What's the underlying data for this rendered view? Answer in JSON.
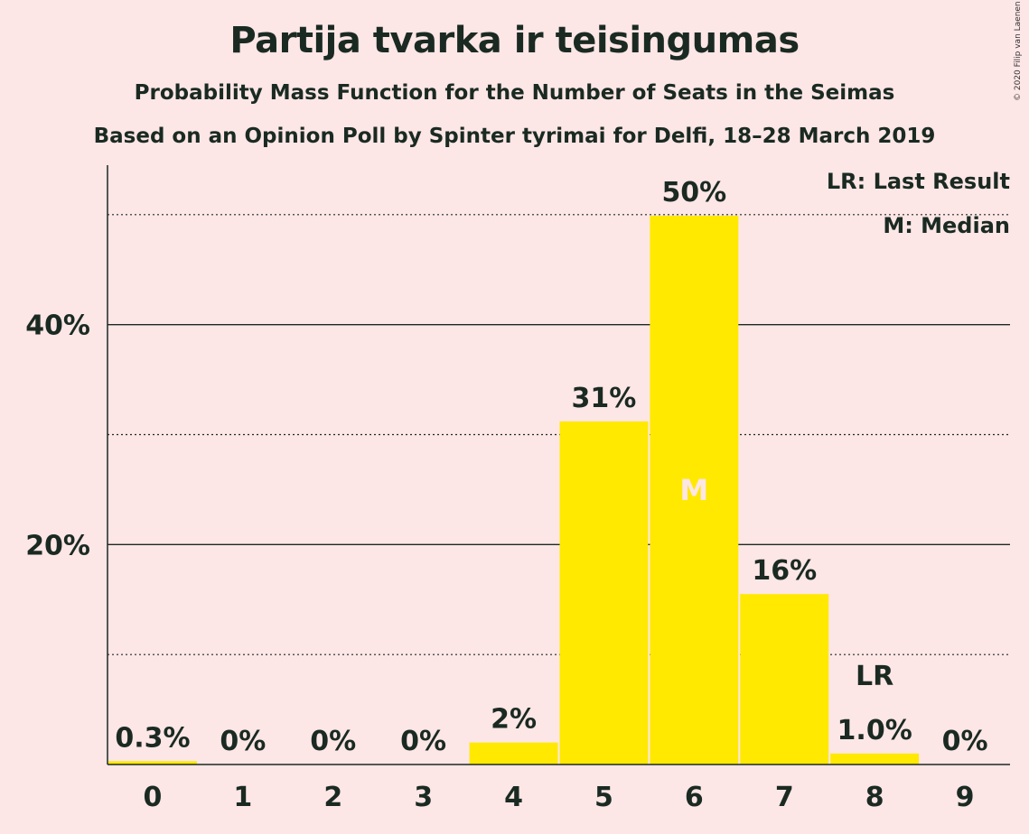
{
  "title": "Partija tvarka ir teisingumas",
  "subtitle": "Probability Mass Function for the Number of Seats in the Seimas",
  "subtitle2": "Based on an Opinion Poll by Spinter tyrimai for Delfi, 18–28 March 2019",
  "copyright": "© 2020 Filip van Laenen",
  "legend": {
    "lr": "LR: Last Result",
    "m": "M: Median"
  },
  "colors": {
    "bar": "#ffe900",
    "background": "#fde6e6",
    "text": "#1a2a22"
  },
  "chart_data": {
    "type": "bar",
    "categories": [
      "0",
      "1",
      "2",
      "3",
      "4",
      "5",
      "6",
      "7",
      "8",
      "9"
    ],
    "values": [
      0.3,
      0,
      0,
      0,
      2,
      31.2,
      49.9,
      15.5,
      1.0,
      0
    ],
    "data_labels": [
      "0.3%",
      "0%",
      "0%",
      "0%",
      "2%",
      "31%",
      "50%",
      "16%",
      "1.0%",
      "0%"
    ],
    "y_ticks": [
      20,
      40
    ],
    "y_tick_labels": [
      "20%",
      "40%"
    ],
    "y_minor_gridlines": [
      10,
      30,
      50
    ],
    "ylim": [
      0,
      54.5
    ],
    "median_category": "6",
    "median_marker": "M",
    "last_result_category": "8",
    "last_result_marker": "LR",
    "xlabel": "",
    "ylabel": ""
  }
}
